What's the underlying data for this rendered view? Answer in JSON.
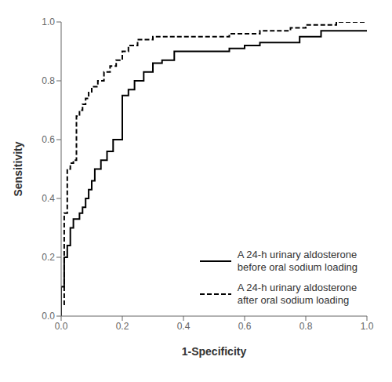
{
  "chart_data": {
    "type": "line",
    "title": "",
    "xlabel": "1-Specificity",
    "ylabel": "Sensitivity",
    "xlim": [
      0.0,
      1.0
    ],
    "ylim": [
      0.0,
      1.0
    ],
    "xticks": [
      {
        "value": 0,
        "label": "0.0"
      },
      0.2,
      0.4,
      0.6,
      0.8,
      {
        "value": 1,
        "label": "1.0"
      }
    ],
    "yticks": [
      {
        "value": 0,
        "label": "0.0"
      },
      0.2,
      0.4,
      0.6,
      0.8,
      {
        "value": 1,
        "label": "1.0"
      }
    ],
    "grid": false,
    "legend": "lower right",
    "series": [
      {
        "name": "A 24-h urinary aldosterone\nbefore oral sodium loading",
        "color": "#000000",
        "line_style": "solid",
        "x": [
          0.0,
          0.0,
          0.01,
          0.01,
          0.02,
          0.02,
          0.03,
          0.03,
          0.04,
          0.04,
          0.06,
          0.06,
          0.07,
          0.07,
          0.08,
          0.08,
          0.09,
          0.09,
          0.1,
          0.1,
          0.11,
          0.11,
          0.13,
          0.13,
          0.15,
          0.15,
          0.17,
          0.17,
          0.2,
          0.2,
          0.22,
          0.22,
          0.24,
          0.24,
          0.27,
          0.27,
          0.3,
          0.3,
          0.33,
          0.33,
          0.37,
          0.37,
          0.42,
          0.42,
          0.55,
          0.55,
          0.6,
          0.6,
          0.65,
          0.65,
          0.7,
          0.7,
          0.78,
          0.78,
          0.85,
          0.85,
          1.0
        ],
        "values": [
          0.0,
          0.1,
          0.1,
          0.2,
          0.2,
          0.24,
          0.24,
          0.3,
          0.3,
          0.33,
          0.33,
          0.35,
          0.35,
          0.37,
          0.37,
          0.4,
          0.4,
          0.43,
          0.43,
          0.46,
          0.46,
          0.5,
          0.5,
          0.53,
          0.53,
          0.56,
          0.56,
          0.6,
          0.6,
          0.75,
          0.75,
          0.77,
          0.77,
          0.8,
          0.8,
          0.83,
          0.83,
          0.86,
          0.86,
          0.87,
          0.87,
          0.9,
          0.9,
          0.9,
          0.9,
          0.91,
          0.91,
          0.92,
          0.92,
          0.93,
          0.93,
          0.93,
          0.93,
          0.95,
          0.95,
          0.97,
          0.97
        ]
      },
      {
        "name": "A 24-h urinary aldosterone\nafter oral sodium loading",
        "color": "#000000",
        "line_style": "dashed",
        "x": [
          0.0,
          0.0,
          0.01,
          0.01,
          0.02,
          0.02,
          0.03,
          0.03,
          0.04,
          0.04,
          0.05,
          0.05,
          0.06,
          0.06,
          0.07,
          0.07,
          0.08,
          0.08,
          0.09,
          0.09,
          0.1,
          0.1,
          0.12,
          0.12,
          0.14,
          0.14,
          0.16,
          0.16,
          0.18,
          0.18,
          0.2,
          0.2,
          0.22,
          0.22,
          0.25,
          0.25,
          0.3,
          0.3,
          0.35,
          0.35,
          0.4,
          0.4,
          0.55,
          0.55,
          0.6,
          0.6,
          0.65,
          0.65,
          0.75,
          0.75,
          0.8,
          0.8,
          0.9,
          0.9,
          1.0
        ],
        "values": [
          0.0,
          0.04,
          0.04,
          0.35,
          0.35,
          0.5,
          0.5,
          0.52,
          0.52,
          0.53,
          0.53,
          0.68,
          0.68,
          0.7,
          0.7,
          0.72,
          0.72,
          0.74,
          0.74,
          0.76,
          0.76,
          0.78,
          0.78,
          0.8,
          0.8,
          0.83,
          0.83,
          0.85,
          0.85,
          0.87,
          0.87,
          0.9,
          0.9,
          0.92,
          0.92,
          0.94,
          0.94,
          0.95,
          0.95,
          0.95,
          0.95,
          0.95,
          0.95,
          0.96,
          0.96,
          0.96,
          0.96,
          0.97,
          0.97,
          0.98,
          0.98,
          0.99,
          0.99,
          1.0,
          1.0
        ]
      }
    ]
  }
}
